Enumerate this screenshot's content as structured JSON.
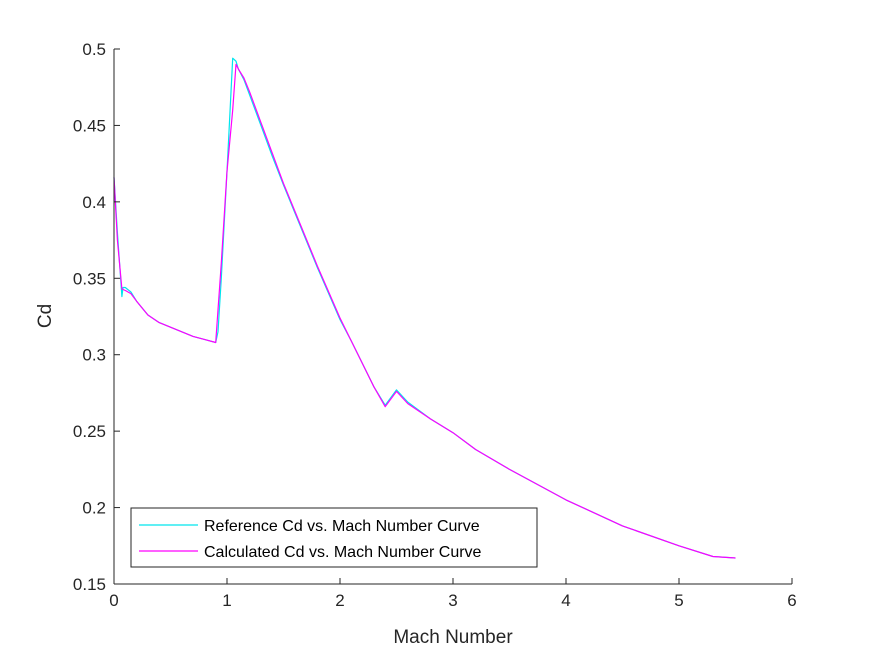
{
  "chart_data": {
    "type": "line",
    "xlabel": "Mach Number",
    "ylabel": "Cd",
    "xlim": [
      0,
      6
    ],
    "ylim": [
      0.15,
      0.5
    ],
    "xticks": [
      "0",
      "1",
      "2",
      "3",
      "4",
      "5",
      "6"
    ],
    "yticks": [
      "0.15",
      "0.2",
      "0.25",
      "0.3",
      "0.35",
      "0.4",
      "0.45",
      "0.5"
    ],
    "grid": false,
    "legend_position": "bottom-left",
    "series": [
      {
        "name": "Reference Cd vs. Mach Number Curve",
        "color": "#00E5EE",
        "x": [
          0.0,
          0.03,
          0.07,
          0.08,
          0.1,
          0.15,
          0.2,
          0.3,
          0.4,
          0.5,
          0.6,
          0.7,
          0.8,
          0.9,
          0.92,
          0.95,
          1.0,
          1.05,
          1.08,
          1.1,
          1.15,
          1.2,
          1.3,
          1.4,
          1.5,
          1.6,
          1.7,
          1.8,
          1.9,
          2.0,
          2.1,
          2.2,
          2.3,
          2.4,
          2.5,
          2.6,
          2.8,
          3.0,
          3.2,
          3.5,
          4.0,
          4.5,
          5.0,
          5.3,
          5.5
        ],
        "y": [
          0.416,
          0.38,
          0.338,
          0.344,
          0.344,
          0.341,
          0.335,
          0.326,
          0.321,
          0.318,
          0.315,
          0.312,
          0.31,
          0.308,
          0.315,
          0.35,
          0.42,
          0.494,
          0.492,
          0.487,
          0.48,
          0.47,
          0.45,
          0.43,
          0.411,
          0.393,
          0.375,
          0.357,
          0.34,
          0.323,
          0.309,
          0.294,
          0.279,
          0.267,
          0.277,
          0.269,
          0.258,
          0.249,
          0.238,
          0.225,
          0.205,
          0.188,
          0.175,
          0.168,
          0.167
        ]
      },
      {
        "name": "Calculated Cd vs. Mach Number Curve",
        "color": "#FF00FF",
        "x": [
          0.0,
          0.03,
          0.07,
          0.1,
          0.15,
          0.2,
          0.3,
          0.4,
          0.5,
          0.6,
          0.7,
          0.8,
          0.9,
          0.95,
          1.0,
          1.05,
          1.08,
          1.1,
          1.15,
          1.2,
          1.3,
          1.4,
          1.5,
          1.6,
          1.7,
          1.8,
          1.9,
          2.0,
          2.1,
          2.2,
          2.3,
          2.4,
          2.5,
          2.6,
          2.8,
          3.0,
          3.2,
          3.5,
          4.0,
          4.5,
          5.0,
          5.3,
          5.5
        ],
        "y": [
          0.416,
          0.375,
          0.343,
          0.342,
          0.34,
          0.335,
          0.326,
          0.321,
          0.318,
          0.315,
          0.312,
          0.31,
          0.308,
          0.36,
          0.42,
          0.46,
          0.49,
          0.487,
          0.481,
          0.472,
          0.452,
          0.432,
          0.412,
          0.394,
          0.376,
          0.358,
          0.341,
          0.324,
          0.309,
          0.294,
          0.279,
          0.266,
          0.276,
          0.268,
          0.258,
          0.249,
          0.238,
          0.225,
          0.205,
          0.188,
          0.175,
          0.168,
          0.167
        ]
      }
    ]
  }
}
